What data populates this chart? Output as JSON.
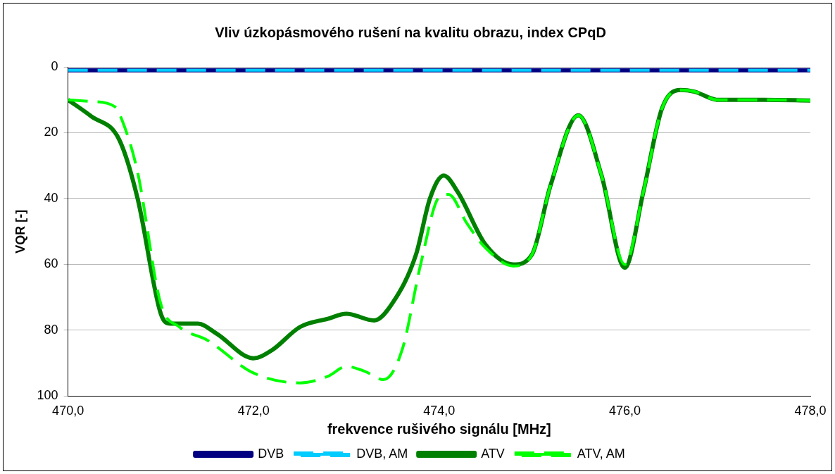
{
  "chart_data": {
    "type": "line",
    "title": "Vliv úzkopásmového rušení na kvalitu obrazu, index CPqD",
    "xlabel": "frekvence rušivého signálu [MHz]",
    "ylabel": "VQR [-]",
    "xlim": [
      470,
      478
    ],
    "xticks": [
      {
        "value": 470,
        "label": "470,0"
      },
      {
        "value": 472,
        "label": "472,0"
      },
      {
        "value": 474,
        "label": "474,0"
      },
      {
        "value": 476,
        "label": "476,0"
      },
      {
        "value": 478,
        "label": "478,0"
      }
    ],
    "ylim": [
      100,
      0
    ],
    "yticks": [
      0,
      20,
      40,
      60,
      80,
      100
    ],
    "grid": "y",
    "legend": "bottom",
    "marker": "none",
    "series": [
      {
        "name": "DVB",
        "color": "#000080",
        "line_style": "solid",
        "x": [
          470,
          478
        ],
        "values": [
          1,
          1
        ]
      },
      {
        "name": "DVB, AM",
        "color": "#00ccff",
        "line_style": "dashed",
        "x": [
          470,
          478
        ],
        "values": [
          1,
          1
        ]
      },
      {
        "name": "ATV",
        "color": "#008000",
        "line_style": "solid",
        "x": [
          470,
          470.25,
          470.55,
          470.75,
          471,
          471.1,
          471.4,
          471.6,
          472,
          472.2,
          472.5,
          472.8,
          473,
          473.3,
          473.5,
          473.75,
          473.9,
          474.05,
          474.2,
          474.5,
          474.8,
          475,
          475.2,
          475.5,
          475.75,
          476,
          476.2,
          476.4,
          476.6,
          476.75,
          477,
          477.5,
          478
        ],
        "values": [
          10,
          15,
          22,
          40,
          75,
          78,
          78,
          81,
          88.5,
          86,
          79,
          76.5,
          75,
          77,
          71.6,
          57,
          40,
          33,
          38,
          54,
          60,
          57,
          36,
          14.7,
          33,
          61,
          38,
          12.7,
          7,
          7.5,
          10,
          10,
          10.2
        ]
      },
      {
        "name": "ATV, AM",
        "color": "#00ff00",
        "line_style": "dashed",
        "x": [
          470,
          470.25,
          470.5,
          470.6,
          470.75,
          471,
          471.2,
          471.5,
          472,
          472.5,
          472.8,
          473,
          473.2,
          473.4,
          473.6,
          473.8,
          474,
          474.1,
          474.3,
          474.5,
          474.8,
          475,
          475.2,
          475.5,
          475.75,
          476,
          476.2,
          476.4,
          476.6,
          476.75,
          477,
          477.5,
          478
        ],
        "values": [
          10,
          10.5,
          12,
          17.5,
          32,
          72,
          79,
          83,
          93,
          96,
          94,
          91,
          92.5,
          95,
          86,
          60,
          39.5,
          38.7,
          47.6,
          55,
          60.5,
          57,
          36,
          14.7,
          33,
          60,
          38,
          12.7,
          7,
          7.5,
          10,
          10,
          10.2
        ]
      }
    ]
  }
}
